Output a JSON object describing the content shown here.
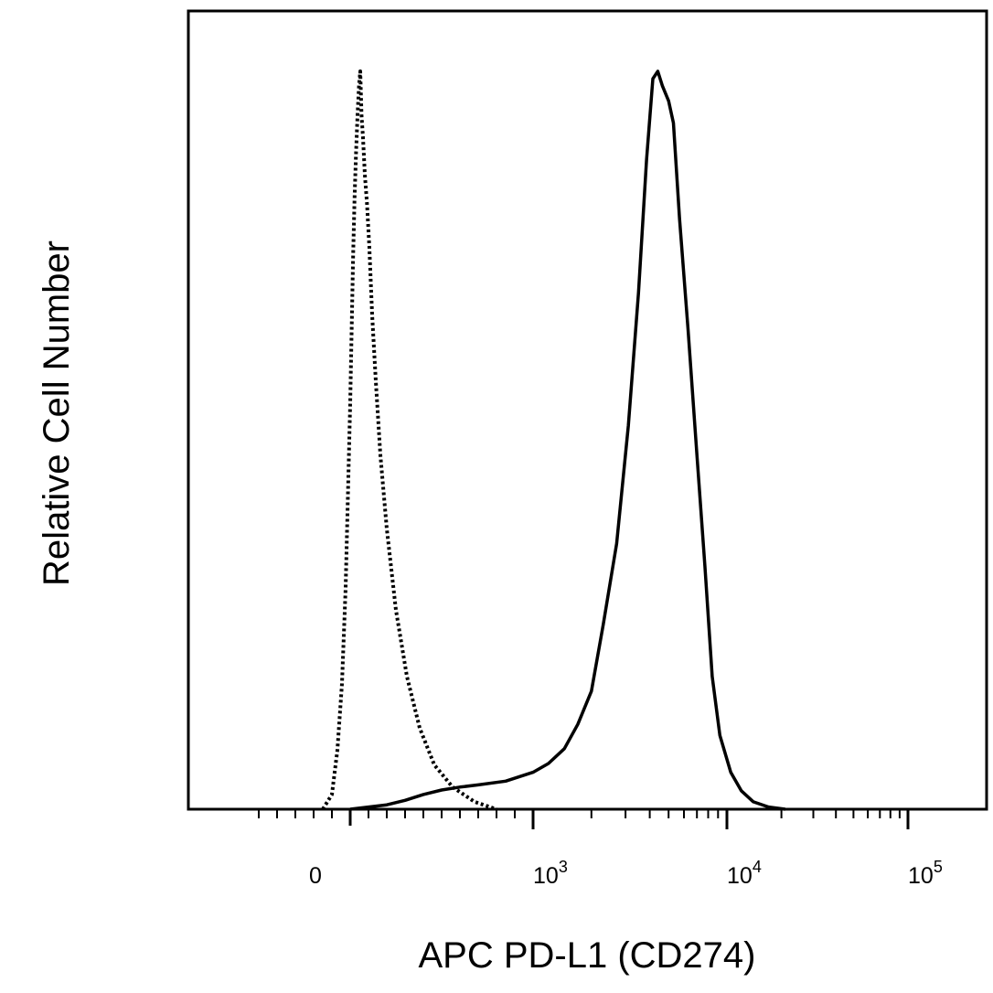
{
  "chart_data": {
    "type": "line",
    "xlabel": "APC PD-L1 (CD274)",
    "ylabel": "Relative Cell Number",
    "x_scale": "biexponential",
    "x_tick_labels": [
      {
        "text": "0",
        "value": 0
      },
      {
        "base": "10",
        "exp": "3",
        "value": 1000
      },
      {
        "base": "10",
        "exp": "4",
        "value": 10000
      },
      {
        "base": "10",
        "exp": "5",
        "value": 100000
      }
    ],
    "ylim": [
      0,
      100
    ],
    "grid": false,
    "series": [
      {
        "style": "dotted",
        "color": "#000000",
        "points": [
          [
            -150,
            0
          ],
          [
            -100,
            2
          ],
          [
            -70,
            8
          ],
          [
            -45,
            17
          ],
          [
            -25,
            30
          ],
          [
            -10,
            45
          ],
          [
            0,
            55
          ],
          [
            8,
            65
          ],
          [
            16,
            75
          ],
          [
            24,
            83
          ],
          [
            32,
            89
          ],
          [
            40,
            94
          ],
          [
            48,
            98
          ],
          [
            55,
            100
          ],
          [
            62,
            94
          ],
          [
            70,
            91
          ],
          [
            80,
            86
          ],
          [
            92,
            82
          ],
          [
            105,
            76
          ],
          [
            120,
            67
          ],
          [
            140,
            58
          ],
          [
            165,
            48
          ],
          [
            200,
            38
          ],
          [
            250,
            27
          ],
          [
            310,
            18
          ],
          [
            380,
            11
          ],
          [
            460,
            6
          ],
          [
            560,
            3
          ],
          [
            680,
            1
          ],
          [
            800,
            0
          ]
        ]
      },
      {
        "style": "solid",
        "color": "#000000",
        "points": [
          [
            0,
            0
          ],
          [
            100,
            0.3
          ],
          [
            200,
            0.6
          ],
          [
            300,
            1.2
          ],
          [
            400,
            2
          ],
          [
            500,
            2.6
          ],
          [
            600,
            3
          ],
          [
            700,
            3.3
          ],
          [
            850,
            3.8
          ],
          [
            1000,
            5
          ],
          [
            1200,
            6.2
          ],
          [
            1450,
            8.2
          ],
          [
            1700,
            11.5
          ],
          [
            2000,
            16
          ],
          [
            2300,
            25
          ],
          [
            2700,
            36
          ],
          [
            3100,
            52
          ],
          [
            3500,
            70
          ],
          [
            3850,
            88
          ],
          [
            4150,
            99
          ],
          [
            4400,
            100
          ],
          [
            4650,
            98
          ],
          [
            5000,
            96
          ],
          [
            5300,
            93
          ],
          [
            5700,
            80
          ],
          [
            6300,
            65
          ],
          [
            7000,
            48
          ],
          [
            7700,
            33
          ],
          [
            8400,
            18
          ],
          [
            9200,
            10
          ],
          [
            10500,
            5
          ],
          [
            12000,
            2.5
          ],
          [
            14000,
            1
          ],
          [
            17000,
            0.3
          ],
          [
            21000,
            0
          ]
        ]
      }
    ]
  }
}
